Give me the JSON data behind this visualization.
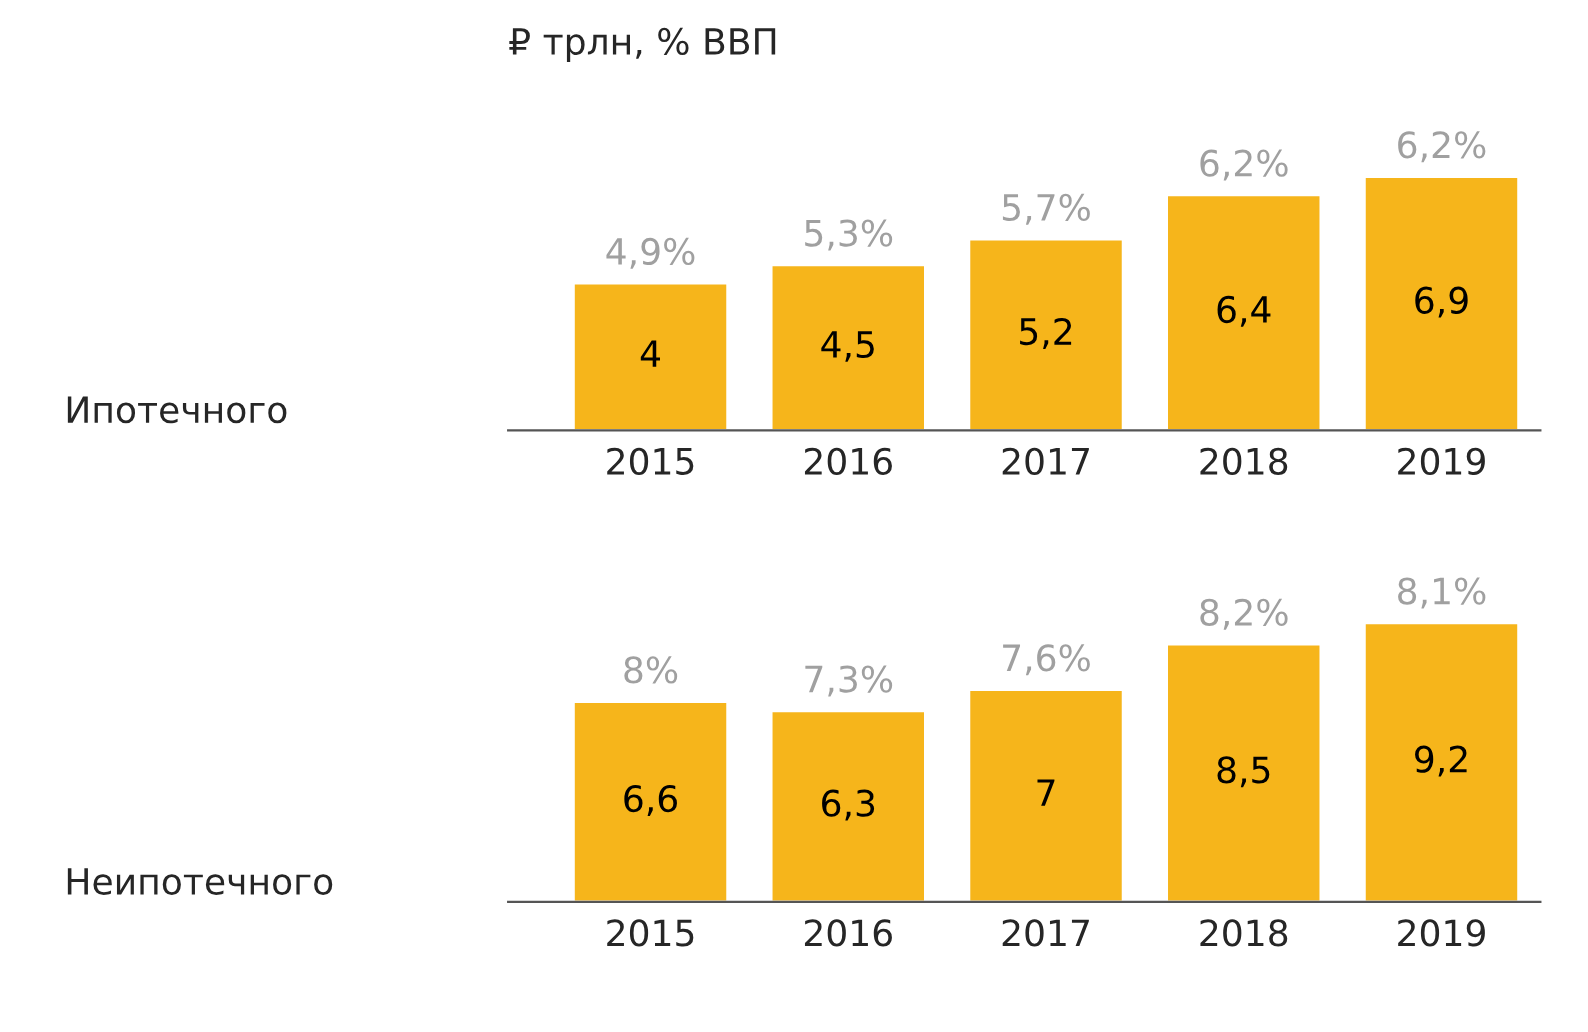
{
  "chart_data": [
    {
      "type": "bar",
      "title": "₽ трлн, % ВВП",
      "ylabel": "Ипотечного",
      "categories": [
        "2015",
        "2016",
        "2017",
        "2018",
        "2019"
      ],
      "values": [
        4,
        4.5,
        5.2,
        6.4,
        6.9
      ],
      "color": "#f6b51b",
      "value_labels": [
        "4",
        "4,5",
        "5,2",
        "6,4",
        "6,9"
      ],
      "annotations": [
        {
          "text": "4,9%",
          "x": "2015",
          "y": 4
        },
        {
          "text": "5,3%",
          "x": "2016",
          "y": 4.5
        },
        {
          "text": "5,7%",
          "x": "2017",
          "y": 5.2
        },
        {
          "text": "6,2%",
          "x": "2018",
          "y": 6.4
        },
        {
          "text": "6,2%",
          "x": "2019",
          "y": 6.9
        }
      ]
    },
    {
      "type": "bar",
      "ylabel": "Неипотечного",
      "categories": [
        "2015",
        "2016",
        "2017",
        "2018",
        "2019"
      ],
      "values": [
        6.6,
        6.3,
        7,
        8.5,
        9.2
      ],
      "color": "#f6b51b",
      "value_labels": [
        "6,6",
        "6,3",
        "7",
        "8,5",
        "9,2"
      ],
      "annotations": [
        {
          "text": "8%",
          "x": "2015",
          "y": 6.6
        },
        {
          "text": "7,3%",
          "x": "2016",
          "y": 6.3
        },
        {
          "text": "7,6%",
          "x": "2017",
          "y": 7
        },
        {
          "text": "8,2%",
          "x": "2018",
          "y": 8.5
        },
        {
          "text": "8,1%",
          "x": "2019",
          "y": 9.2
        }
      ]
    }
  ]
}
